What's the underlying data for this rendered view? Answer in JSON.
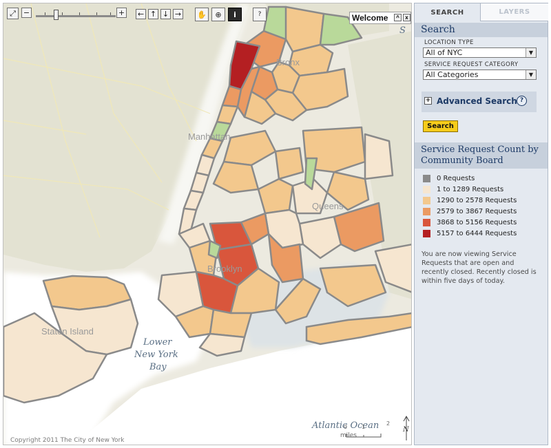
{
  "toolbar": {
    "full_extent": "⤢",
    "zoom_out": "−",
    "zoom_in": "+",
    "pan_left": "←",
    "pan_up": "↑",
    "pan_down": "↓",
    "pan_right": "→",
    "pan_tool": "✋",
    "zoom_tool": "⊕",
    "identify_tool": "i",
    "measure_tool": "?",
    "zoom_level_fraction": 0.22
  },
  "welcome": {
    "title": "Welcome",
    "minimize": "^",
    "close": "x"
  },
  "map_labels": {
    "bronx": "Bronx",
    "manhattan": "Manhattan",
    "queens": "Queens",
    "brooklyn": "Brooklyn",
    "staten_island": "Staten Island",
    "bay_1": "Lower",
    "bay_2": "New York",
    "bay_3": "Bay",
    "ocean": "Atlantic Ocean",
    "sound": "S",
    "scale_unit": "miles",
    "scale_0": "0",
    "scale_1": "1",
    "scale_2": "2",
    "north": "N",
    "copyright": "Copyright 2011 The City of New York"
  },
  "tabs": {
    "search": "SEARCH",
    "layers": "LAYERS"
  },
  "search": {
    "heading": "Search",
    "location_label": "LOCATION TYPE",
    "location_value": "All of NYC",
    "category_label": "SERVICE REQUEST CATEGORY",
    "category_value": "All Categories",
    "advanced": "Advanced Search",
    "advanced_expand": "+",
    "advanced_help": "?",
    "button": "Search"
  },
  "legend": {
    "heading_line1": "Service Request Count by",
    "heading_line2": "Community Board",
    "items": [
      {
        "label": "0 Requests",
        "color": "#8a8a8a"
      },
      {
        "label": "1 to 1289 Requests",
        "color": "#f6e6d0"
      },
      {
        "label": "1290 to 2578 Requests",
        "color": "#f3c88d"
      },
      {
        "label": "2579 to 3867 Requests",
        "color": "#eb9a62"
      },
      {
        "label": "3868 to 5156 Requests",
        "color": "#d9563c"
      },
      {
        "label": "5157 to 6444 Requests",
        "color": "#b41f22"
      }
    ]
  },
  "note": "You are now viewing Service Requests that are open and recently closed. Recently closed is within five days of today.",
  "colors": {
    "water": "#ffffff",
    "land": "#e7e5d8",
    "park": "#b9d99a",
    "border": "#8a8a8a",
    "panel_header": "#1d3a66",
    "search_button": "#f6cc1b"
  }
}
